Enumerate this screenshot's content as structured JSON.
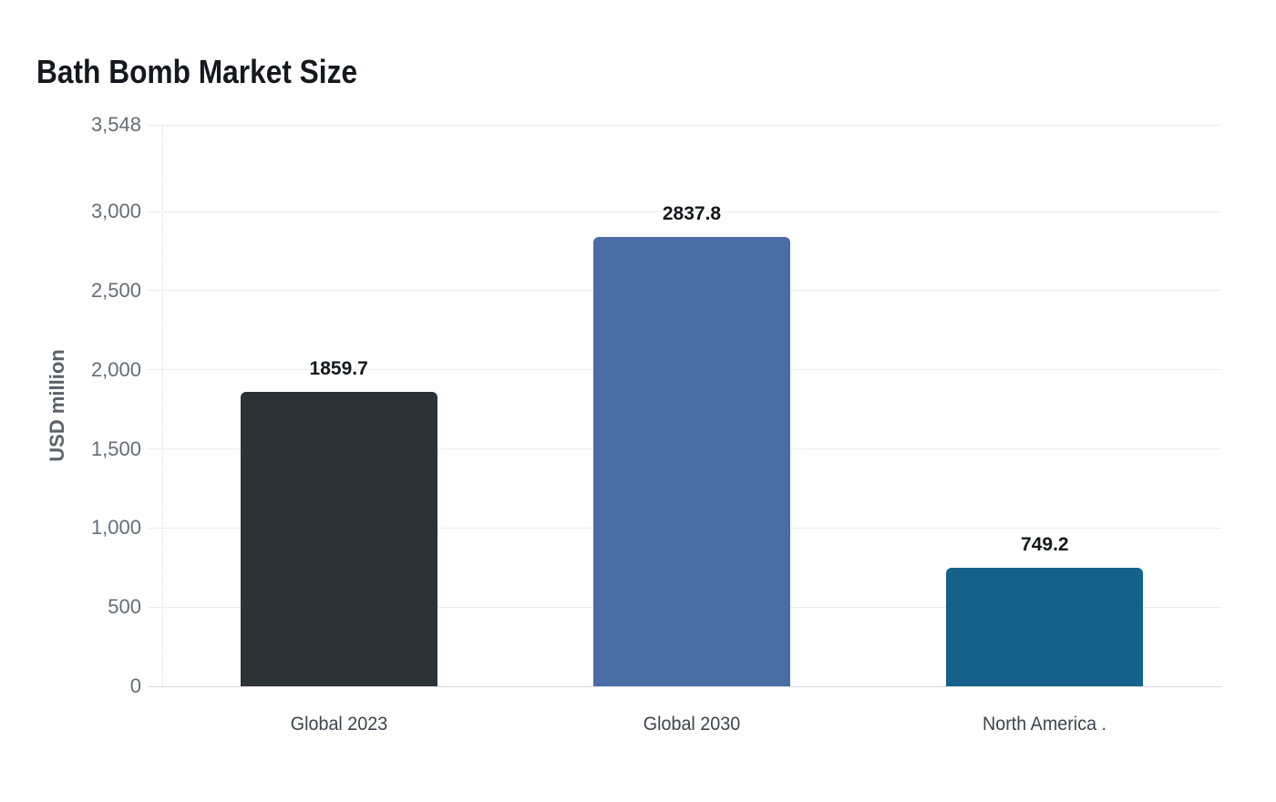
{
  "title": "Bath Bomb Market Size",
  "colors": {
    "background": "#ffffff",
    "title_text": "#15181c",
    "axis_title_text": "#5b6167",
    "tick_label_text": "#666d75",
    "category_label_text": "#3e454d",
    "value_label_text": "#15181c",
    "gridline": "#ececec",
    "baseline": "#d8d9db",
    "axis_dotted_line": "#d9dadc"
  },
  "chart_data": {
    "type": "bar",
    "title": "Bath Bomb Market Size",
    "xlabel": "",
    "ylabel": "USD million",
    "categories": [
      "Global 2023",
      "Global 2030",
      "North America ."
    ],
    "values": [
      1859.7,
      2837.8,
      749.2
    ],
    "value_labels": [
      "1859.7",
      "2837.8",
      "749.2"
    ],
    "bar_colors": [
      "#2c3336",
      "#4a6da6",
      "#15618a"
    ],
    "ylim": [
      0,
      3548
    ],
    "yticks": [
      0,
      500,
      1000,
      1500,
      2000,
      2500,
      3000,
      3548
    ],
    "ytick_labels": [
      "0",
      "500",
      "1,000",
      "1,500",
      "2,000",
      "2,500",
      "3,000",
      "3,548"
    ],
    "grid": true,
    "legend": false
  }
}
